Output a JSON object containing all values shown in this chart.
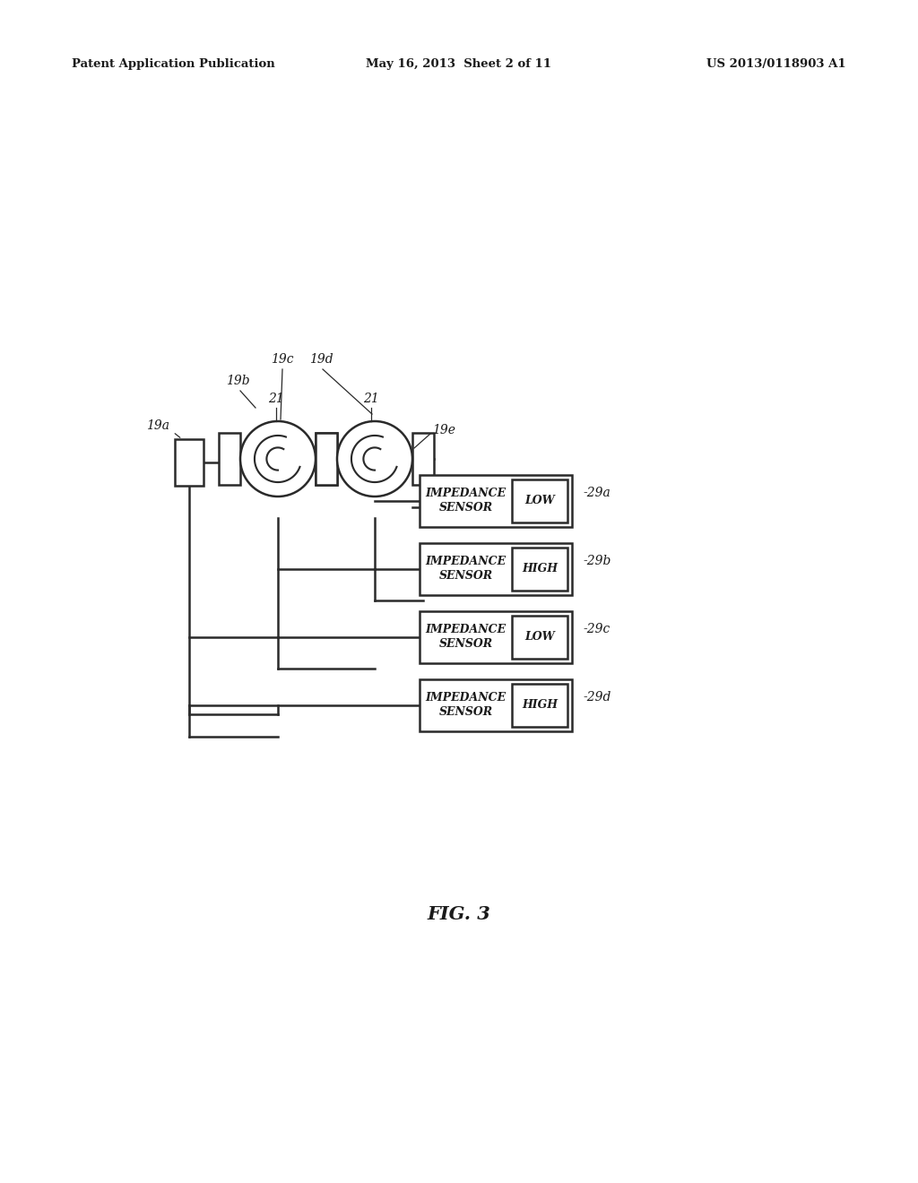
{
  "bg_color": "#ffffff",
  "header_left": "Patent Application Publication",
  "header_center": "May 16, 2013  Sheet 2 of 11",
  "header_right": "US 2013/0118903 A1",
  "fig_label": "FIG. 3",
  "line_color": "#2a2a2a",
  "text_color": "#1a1a1a",
  "sensors": [
    {
      "label": "IMPEDANCE\nSENSOR",
      "value": "LOW",
      "tag": "29a"
    },
    {
      "label": "IMPEDANCE\nSENSOR",
      "value": "HIGH",
      "tag": "29b"
    },
    {
      "label": "IMPEDANCE\nSENSOR",
      "value": "LOW",
      "tag": "29c"
    },
    {
      "label": "IMPEDANCE\nSENSOR",
      "value": "HIGH",
      "tag": "29d"
    }
  ]
}
